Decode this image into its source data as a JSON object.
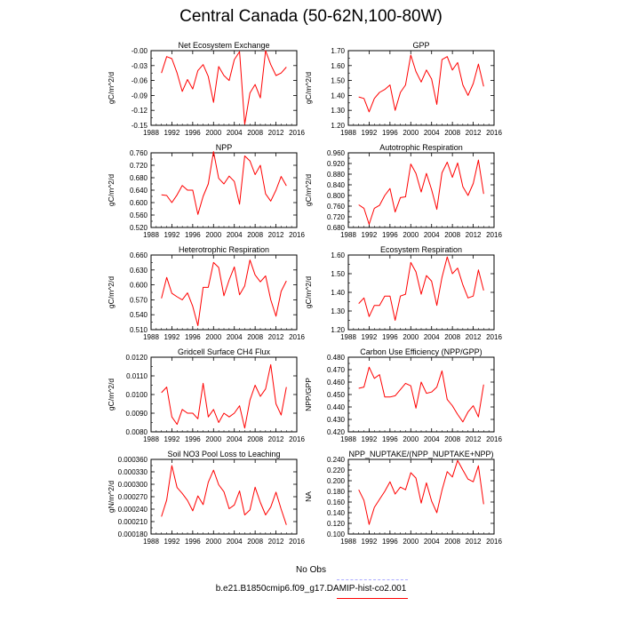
{
  "title": "Central Canada (50-62N,100-80W)",
  "legend": {
    "obs_label": "No Obs",
    "obs_color": "#aaaaff",
    "model_label": "b.e21.B1850cmip6.f09_g17.DAMIP-hist-co2.001",
    "model_color": "#ff0000"
  },
  "chart_data": [
    {
      "type": "line",
      "title": "Net Ecosystem Exchange",
      "ylabel": "gC/m^2/d",
      "xlim": [
        1988,
        2016
      ],
      "ylim": [
        -0.15,
        0.0
      ],
      "xticks": [
        "1988",
        "1992",
        "1996",
        "2000",
        "2004",
        "2008",
        "2012",
        "2016"
      ],
      "yticks": [
        "-0.15",
        "-0.12",
        "-0.09",
        "-0.06",
        "-0.03",
        "-0.00"
      ],
      "x": [
        1990,
        1991,
        1992,
        1993,
        1994,
        1995,
        1996,
        1997,
        1998,
        1999,
        2000,
        2001,
        2002,
        2003,
        2004,
        2005,
        2006,
        2007,
        2008,
        2009,
        2010,
        2011,
        2012,
        2013,
        2014
      ],
      "series": [
        {
          "values": [
            -0.045,
            -0.012,
            -0.016,
            -0.045,
            -0.082,
            -0.058,
            -0.077,
            -0.04,
            -0.028,
            -0.052,
            -0.104,
            -0.032,
            -0.05,
            -0.06,
            -0.018,
            -0.002,
            -0.148,
            -0.085,
            -0.068,
            -0.095,
            0.0,
            -0.028,
            -0.05,
            -0.045,
            -0.033
          ],
          "color": "#ff0000"
        }
      ]
    },
    {
      "type": "line",
      "title": "GPP",
      "ylabel": "gC/m^2/d",
      "xlim": [
        1988,
        2016
      ],
      "ylim": [
        1.2,
        1.7
      ],
      "xticks": [
        "1988",
        "1992",
        "1996",
        "2000",
        "2004",
        "2008",
        "2012",
        "2016"
      ],
      "yticks": [
        "1.20",
        "1.30",
        "1.40",
        "1.50",
        "1.60",
        "1.70"
      ],
      "x": [
        1990,
        1991,
        1992,
        1993,
        1994,
        1995,
        1996,
        1997,
        1998,
        1999,
        2000,
        2001,
        2002,
        2003,
        2004,
        2005,
        2006,
        2007,
        2008,
        2009,
        2010,
        2011,
        2012,
        2013,
        2014
      ],
      "series": [
        {
          "values": [
            1.39,
            1.38,
            1.29,
            1.38,
            1.42,
            1.44,
            1.47,
            1.3,
            1.42,
            1.47,
            1.67,
            1.56,
            1.49,
            1.57,
            1.51,
            1.34,
            1.64,
            1.66,
            1.57,
            1.62,
            1.47,
            1.4,
            1.48,
            1.61,
            1.46
          ],
          "color": "#ff0000"
        }
      ]
    },
    {
      "type": "line",
      "title": "NPP",
      "ylabel": "gC/m^2/d",
      "xlim": [
        1988,
        2016
      ],
      "ylim": [
        0.52,
        0.76
      ],
      "xticks": [
        "1988",
        "1992",
        "1996",
        "2000",
        "2004",
        "2008",
        "2012",
        "2016"
      ],
      "yticks": [
        "0.520",
        "0.560",
        "0.600",
        "0.640",
        "0.680",
        "0.720",
        "0.760"
      ],
      "x": [
        1990,
        1991,
        1992,
        1993,
        1994,
        1995,
        1996,
        1997,
        1998,
        1999,
        2000,
        2001,
        2002,
        2003,
        2004,
        2005,
        2006,
        2007,
        2008,
        2009,
        2010,
        2011,
        2012,
        2013,
        2014
      ],
      "series": [
        {
          "values": [
            0.625,
            0.623,
            0.6,
            0.625,
            0.655,
            0.64,
            0.64,
            0.562,
            0.62,
            0.66,
            0.764,
            0.678,
            0.66,
            0.685,
            0.668,
            0.595,
            0.75,
            0.734,
            0.69,
            0.72,
            0.628,
            0.605,
            0.64,
            0.684,
            0.654
          ],
          "color": "#ff0000"
        }
      ]
    },
    {
      "type": "line",
      "title": "Autotrophic Respiration",
      "ylabel": "gC/m^2/d",
      "xlim": [
        1988,
        2016
      ],
      "ylim": [
        0.68,
        0.96
      ],
      "xticks": [
        "1988",
        "1992",
        "1996",
        "2000",
        "2004",
        "2008",
        "2012",
        "2016"
      ],
      "yticks": [
        "0.680",
        "0.720",
        "0.760",
        "0.800",
        "0.840",
        "0.880",
        "0.920",
        "0.960"
      ],
      "x": [
        1990,
        1991,
        1992,
        1993,
        1994,
        1995,
        1996,
        1997,
        1998,
        1999,
        2000,
        2001,
        2002,
        2003,
        2004,
        2005,
        2006,
        2007,
        2008,
        2009,
        2010,
        2011,
        2012,
        2013,
        2014
      ],
      "series": [
        {
          "values": [
            0.765,
            0.752,
            0.692,
            0.752,
            0.763,
            0.8,
            0.826,
            0.738,
            0.792,
            0.795,
            0.918,
            0.883,
            0.813,
            0.883,
            0.822,
            0.748,
            0.885,
            0.925,
            0.868,
            0.922,
            0.833,
            0.8,
            0.845,
            0.933,
            0.806
          ],
          "color": "#ff0000"
        }
      ]
    },
    {
      "type": "line",
      "title": "Heterotrophic Respiration",
      "ylabel": "gC/m^2/d",
      "xlim": [
        1988,
        2016
      ],
      "ylim": [
        0.51,
        0.66
      ],
      "xticks": [
        "1988",
        "1992",
        "1996",
        "2000",
        "2004",
        "2008",
        "2012",
        "2016"
      ],
      "yticks": [
        "0.510",
        "0.540",
        "0.570",
        "0.600",
        "0.630",
        "0.660"
      ],
      "x": [
        1990,
        1991,
        1992,
        1993,
        1994,
        1995,
        1996,
        1997,
        1998,
        1999,
        2000,
        2001,
        2002,
        2003,
        2004,
        2005,
        2006,
        2007,
        2008,
        2009,
        2010,
        2011,
        2012,
        2013,
        2014
      ],
      "series": [
        {
          "values": [
            0.573,
            0.615,
            0.583,
            0.576,
            0.57,
            0.584,
            0.557,
            0.518,
            0.595,
            0.595,
            0.645,
            0.635,
            0.578,
            0.61,
            0.636,
            0.58,
            0.598,
            0.65,
            0.62,
            0.606,
            0.618,
            0.57,
            0.537,
            0.587,
            0.608
          ],
          "color": "#ff0000"
        }
      ]
    },
    {
      "type": "line",
      "title": "Ecosystem Respiration",
      "ylabel": "gC/m^2/d",
      "xlim": [
        1988,
        2016
      ],
      "ylim": [
        1.2,
        1.6
      ],
      "xticks": [
        "1988",
        "1992",
        "1996",
        "2000",
        "2004",
        "2008",
        "2012",
        "2016"
      ],
      "yticks": [
        "1.20",
        "1.30",
        "1.40",
        "1.50",
        "1.60"
      ],
      "x": [
        1990,
        1991,
        1992,
        1993,
        1994,
        1995,
        1996,
        1997,
        1998,
        1999,
        2000,
        2001,
        2002,
        2003,
        2004,
        2005,
        2006,
        2007,
        2008,
        2009,
        2010,
        2011,
        2012,
        2013,
        2014
      ],
      "series": [
        {
          "values": [
            1.34,
            1.37,
            1.27,
            1.33,
            1.33,
            1.38,
            1.38,
            1.25,
            1.38,
            1.39,
            1.56,
            1.51,
            1.39,
            1.49,
            1.46,
            1.33,
            1.48,
            1.59,
            1.5,
            1.53,
            1.44,
            1.37,
            1.38,
            1.52,
            1.41
          ],
          "color": "#ff0000"
        }
      ]
    },
    {
      "type": "line",
      "title": "Gridcell Surface CH4 Flux",
      "ylabel": "gC/m^2/d",
      "xlim": [
        1988,
        2016
      ],
      "ylim": [
        0.008,
        0.012
      ],
      "xticks": [
        "1988",
        "1992",
        "1996",
        "2000",
        "2004",
        "2008",
        "2012",
        "2016"
      ],
      "yticks": [
        "0.0080",
        "0.0090",
        "0.0100",
        "0.0110",
        "0.0120"
      ],
      "x": [
        1990,
        1991,
        1992,
        1993,
        1994,
        1995,
        1996,
        1997,
        1998,
        1999,
        2000,
        2001,
        2002,
        2003,
        2004,
        2005,
        2006,
        2007,
        2008,
        2009,
        2010,
        2011,
        2012,
        2013,
        2014
      ],
      "series": [
        {
          "values": [
            0.0101,
            0.0104,
            0.0088,
            0.0084,
            0.0092,
            0.009,
            0.009,
            0.0087,
            0.0106,
            0.0088,
            0.0092,
            0.0085,
            0.009,
            0.0088,
            0.009,
            0.0094,
            0.0082,
            0.0097,
            0.0105,
            0.0099,
            0.0103,
            0.0116,
            0.0095,
            0.0089,
            0.0104
          ],
          "color": "#ff0000"
        }
      ]
    },
    {
      "type": "line",
      "title": "Carbon Use Efficiency (NPP/GPP)",
      "ylabel": "NPP/GPP",
      "xlim": [
        1988,
        2016
      ],
      "ylim": [
        0.42,
        0.48
      ],
      "xticks": [
        "1988",
        "1992",
        "1996",
        "2000",
        "2004",
        "2008",
        "2012",
        "2016"
      ],
      "yticks": [
        "0.420",
        "0.430",
        "0.440",
        "0.450",
        "0.460",
        "0.470",
        "0.480"
      ],
      "x": [
        1990,
        1991,
        1992,
        1993,
        1994,
        1995,
        1996,
        1997,
        1998,
        1999,
        2000,
        2001,
        2002,
        2003,
        2004,
        2005,
        2006,
        2007,
        2008,
        2009,
        2010,
        2011,
        2012,
        2013,
        2014
      ],
      "series": [
        {
          "values": [
            0.455,
            0.456,
            0.472,
            0.463,
            0.466,
            0.448,
            0.448,
            0.449,
            0.454,
            0.459,
            0.457,
            0.439,
            0.46,
            0.451,
            0.452,
            0.456,
            0.469,
            0.446,
            0.441,
            0.434,
            0.428,
            0.436,
            0.441,
            0.432,
            0.458
          ],
          "color": "#ff0000"
        }
      ]
    },
    {
      "type": "line",
      "title": "Soil NO3 Pool Loss to Leaching",
      "ylabel": "gN/m^2/d",
      "xlim": [
        1988,
        2016
      ],
      "ylim": [
        0.00018,
        0.00036
      ],
      "xticks": [
        "1988",
        "1992",
        "1996",
        "2000",
        "2004",
        "2008",
        "2012",
        "2016"
      ],
      "yticks": [
        "0.000180",
        "0.000210",
        "0.000240",
        "0.000270",
        "0.000300",
        "0.000330",
        "0.000360"
      ],
      "x": [
        1990,
        1991,
        1992,
        1993,
        1994,
        1995,
        1996,
        1997,
        1998,
        1999,
        2000,
        2001,
        2002,
        2003,
        2004,
        2005,
        2006,
        2007,
        2008,
        2009,
        2010,
        2011,
        2012,
        2013,
        2014
      ],
      "series": [
        {
          "values": [
            0.000222,
            0.000262,
            0.000345,
            0.000292,
            0.000278,
            0.000261,
            0.000236,
            0.000272,
            0.000251,
            0.000305,
            0.000334,
            0.000299,
            0.000282,
            0.000241,
            0.00025,
            0.000284,
            0.000226,
            0.000238,
            0.000293,
            0.000256,
            0.000226,
            0.000245,
            0.000281,
            0.00024,
            0.000202
          ],
          "color": "#ff0000"
        }
      ]
    },
    {
      "type": "line",
      "title": "NPP_NUPTAKE/(NPP_NUPTAKE+NPP)",
      "ylabel": "NA",
      "xlim": [
        1988,
        2016
      ],
      "ylim": [
        0.1,
        0.24
      ],
      "xticks": [
        "1988",
        "1992",
        "1996",
        "2000",
        "2004",
        "2008",
        "2012",
        "2016"
      ],
      "yticks": [
        "0.100",
        "0.120",
        "0.140",
        "0.160",
        "0.180",
        "0.200",
        "0.220",
        "0.240"
      ],
      "x": [
        1990,
        1991,
        1992,
        1993,
        1994,
        1995,
        1996,
        1997,
        1998,
        1999,
        2000,
        2001,
        2002,
        2003,
        2004,
        2005,
        2006,
        2007,
        2008,
        2009,
        2010,
        2011,
        2012,
        2013,
        2014
      ],
      "series": [
        {
          "values": [
            0.183,
            0.163,
            0.118,
            0.15,
            0.165,
            0.18,
            0.198,
            0.175,
            0.188,
            0.183,
            0.215,
            0.205,
            0.158,
            0.196,
            0.162,
            0.14,
            0.182,
            0.217,
            0.207,
            0.238,
            0.22,
            0.203,
            0.198,
            0.228,
            0.156
          ],
          "color": "#ff0000"
        }
      ]
    }
  ]
}
